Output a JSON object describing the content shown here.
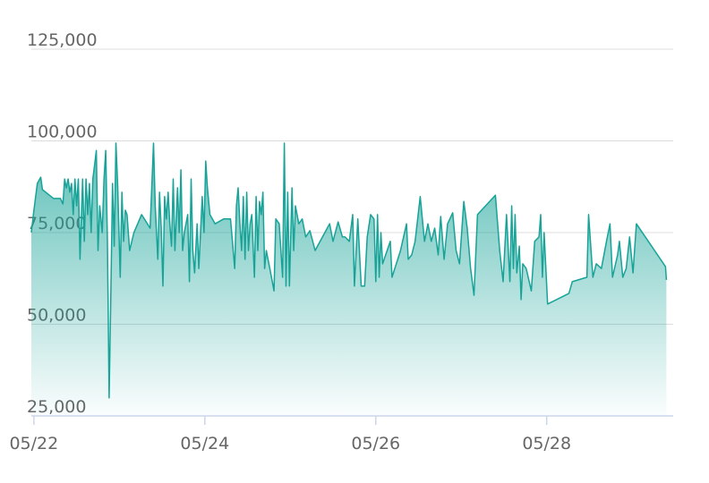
{
  "chart_data": {
    "type": "area",
    "x": [
      21.97,
      22.0,
      22.04,
      22.08,
      22.1,
      22.23,
      22.31,
      22.34,
      22.36,
      22.38,
      22.4,
      22.42,
      22.44,
      22.46,
      22.48,
      22.5,
      22.52,
      22.54,
      22.57,
      22.59,
      22.61,
      22.63,
      22.65,
      22.67,
      22.69,
      22.71,
      22.73,
      22.75,
      22.77,
      22.8,
      22.82,
      22.84,
      22.86,
      22.88,
      22.9,
      22.92,
      22.94,
      22.96,
      22.98,
      23.01,
      23.03,
      23.05,
      23.07,
      23.09,
      23.12,
      23.17,
      23.26,
      23.36,
      23.4,
      23.42,
      23.45,
      23.47,
      23.49,
      23.51,
      23.53,
      23.55,
      23.57,
      23.59,
      23.61,
      23.63,
      23.65,
      23.68,
      23.7,
      23.72,
      23.74,
      23.76,
      23.78,
      23.8,
      23.82,
      23.84,
      23.86,
      23.88,
      23.91,
      23.93,
      23.95,
      23.97,
      23.99,
      24.01,
      24.03,
      24.06,
      24.12,
      24.22,
      24.3,
      24.35,
      24.37,
      24.39,
      24.41,
      24.43,
      24.45,
      24.47,
      24.49,
      24.51,
      24.53,
      24.55,
      24.58,
      24.6,
      24.62,
      24.64,
      24.66,
      24.68,
      24.7,
      24.72,
      24.76,
      24.81,
      24.83,
      24.87,
      24.91,
      24.93,
      24.95,
      24.97,
      24.99,
      25.02,
      25.04,
      25.06,
      25.1,
      25.14,
      25.18,
      25.23,
      25.29,
      25.46,
      25.5,
      25.56,
      25.61,
      25.64,
      25.69,
      25.73,
      25.75,
      25.79,
      25.83,
      25.87,
      25.9,
      25.94,
      25.98,
      26.0,
      26.02,
      26.04,
      26.06,
      26.08,
      26.17,
      26.19,
      26.29,
      26.36,
      26.38,
      26.42,
      26.46,
      26.52,
      26.57,
      26.61,
      26.65,
      26.69,
      26.73,
      26.76,
      26.8,
      26.84,
      26.9,
      26.94,
      26.98,
      27.03,
      27.07,
      27.11,
      27.15,
      27.19,
      27.4,
      27.45,
      27.49,
      27.53,
      27.57,
      27.59,
      27.61,
      27.63,
      27.65,
      27.68,
      27.7,
      27.72,
      27.76,
      27.82,
      27.86,
      27.91,
      27.93,
      27.95,
      27.97,
      28.01,
      28.26,
      28.3,
      28.47,
      28.49,
      28.54,
      28.58,
      28.64,
      28.7,
      28.74,
      28.77,
      28.83,
      28.85,
      28.89,
      28.93,
      28.97,
      29.01,
      29.05,
      29.39,
      29.4
    ],
    "values": [
      75000,
      81100,
      88400,
      90100,
      86700,
      84300,
      84300,
      82800,
      89600,
      87200,
      89600,
      86000,
      88400,
      79900,
      89600,
      82300,
      89600,
      67700,
      89600,
      72600,
      89600,
      79900,
      88400,
      75000,
      89600,
      93300,
      97400,
      70100,
      82300,
      75000,
      89600,
      97400,
      72600,
      29900,
      57900,
      88400,
      71300,
      99400,
      88400,
      62800,
      86000,
      72600,
      81100,
      79900,
      70100,
      75000,
      79900,
      76200,
      99400,
      82300,
      67700,
      86000,
      76200,
      60400,
      84800,
      78700,
      86000,
      77400,
      71300,
      89600,
      70100,
      87200,
      75000,
      92100,
      70100,
      75000,
      77400,
      79900,
      61600,
      89600,
      70100,
      64000,
      77400,
      65200,
      75000,
      84800,
      75000,
      94500,
      87200,
      79900,
      77400,
      78700,
      78700,
      65200,
      82300,
      87200,
      77400,
      70100,
      84800,
      67700,
      86000,
      70100,
      77400,
      79900,
      62800,
      84800,
      70100,
      83500,
      79900,
      86000,
      65200,
      70100,
      65200,
      59100,
      78700,
      77400,
      62800,
      99400,
      60400,
      86000,
      60400,
      87200,
      70100,
      82300,
      77400,
      78700,
      73800,
      75500,
      70100,
      77400,
      72600,
      77900,
      73800,
      73800,
      72600,
      79900,
      60400,
      78700,
      60400,
      60400,
      73800,
      79900,
      78700,
      61600,
      79900,
      62800,
      75000,
      66500,
      72600,
      62800,
      70100,
      77400,
      67700,
      68900,
      72600,
      84800,
      72600,
      77400,
      72600,
      76200,
      68900,
      79400,
      67700,
      77400,
      80400,
      70100,
      66500,
      83500,
      76200,
      65200,
      57900,
      79900,
      85200,
      70100,
      61600,
      79900,
      61600,
      82300,
      65200,
      79900,
      64000,
      71300,
      56700,
      66500,
      65200,
      59100,
      72600,
      73800,
      79900,
      62800,
      75000,
      55500,
      58400,
      61600,
      62800,
      79900,
      62800,
      66500,
      65200,
      72600,
      77400,
      62800,
      68900,
      72600,
      62800,
      65200,
      73800,
      64000,
      77400,
      65700,
      62100
    ],
    "color": "#17a398",
    "xlim": [
      21.97,
      29.48
    ],
    "xticks": [
      {
        "value": 22,
        "label": "05/22"
      },
      {
        "value": 24,
        "label": "05/24"
      },
      {
        "value": 26,
        "label": "05/26"
      },
      {
        "value": 28,
        "label": "05/28"
      }
    ],
    "ylim": [
      25000,
      125000
    ],
    "yticks": [
      {
        "value": 25000,
        "label": "25,000"
      },
      {
        "value": 50000,
        "label": "50,000"
      },
      {
        "value": 75000,
        "label": "75,000"
      },
      {
        "value": 100000,
        "label": "100,000"
      },
      {
        "value": 125000,
        "label": "125,000"
      }
    ],
    "grid": true
  }
}
